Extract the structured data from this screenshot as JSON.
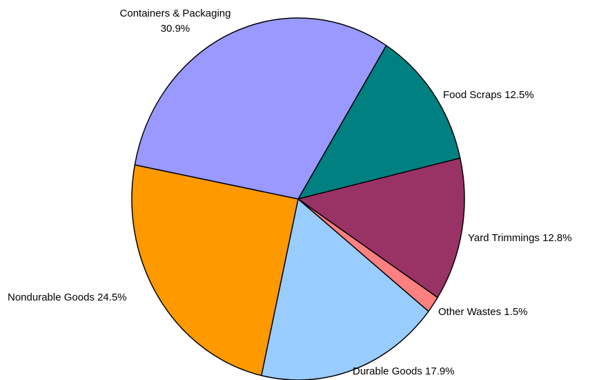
{
  "chart_data": {
    "type": "pie",
    "title": "",
    "start_angle_deg": -58,
    "direction": "clockwise",
    "slices": [
      {
        "label": "Food Scraps 12.5%",
        "value": 12.5,
        "color": "#008080"
      },
      {
        "label": "Yard Trimmings 12.8%",
        "value": 12.8,
        "color": "#993366"
      },
      {
        "label": "Other Wastes 1.5%",
        "value": 1.5,
        "color": "#FF8080"
      },
      {
        "label": "Durable Goods 17.9%",
        "value": 17.9,
        "color": "#99CCFF"
      },
      {
        "label": "Nondurable Goods 24.5%",
        "value": 24.5,
        "color": "#FF9900"
      },
      {
        "label_lines": [
          "Containers & Packaging",
          "30.9%"
        ],
        "value": 30.9,
        "color": "#9999FF"
      }
    ]
  }
}
